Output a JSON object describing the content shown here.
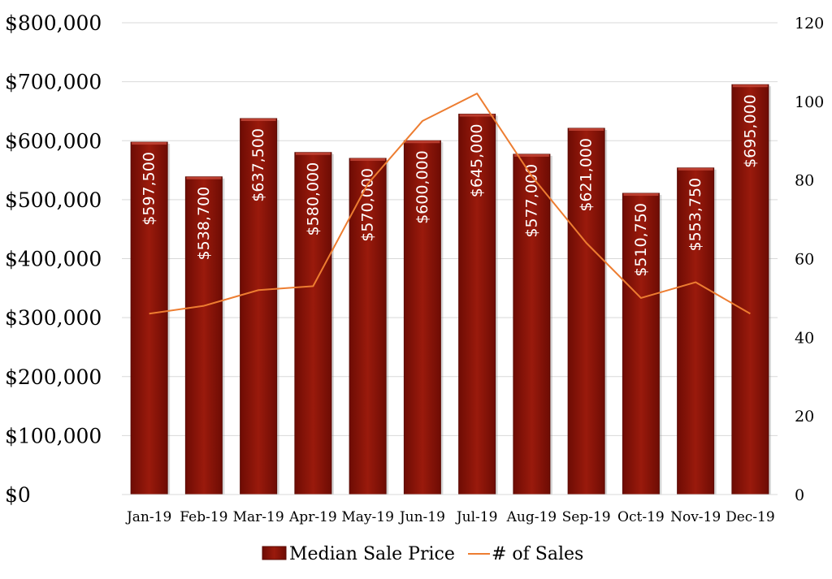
{
  "chart_data": {
    "type": "bar",
    "categories": [
      "Jan-19",
      "Feb-19",
      "Mar-19",
      "Apr-19",
      "May-19",
      "Jun-19",
      "Jul-19",
      "Aug-19",
      "Sep-19",
      "Oct-19",
      "Nov-19",
      "Dec-19"
    ],
    "series": [
      {
        "name": "Median Sale Price",
        "type": "bar",
        "axis": "left",
        "color": "#8b1208",
        "values": [
          597500,
          538700,
          637500,
          580000,
          570000,
          600000,
          645000,
          577000,
          621000,
          510750,
          553750,
          695000
        ],
        "data_labels": [
          "$597,500",
          "$538,700",
          "$637,500",
          "$580,000",
          "$570,000",
          "$600,000",
          "$645,000",
          "$577,000",
          "$621,000",
          "$510,750",
          "$553,750",
          "$695,000"
        ]
      },
      {
        "name": "# of Sales",
        "type": "line",
        "axis": "right",
        "color": "#ed7d31",
        "values": [
          46,
          48,
          52,
          53,
          79,
          95,
          102,
          81,
          64,
          50,
          54,
          46
        ]
      }
    ],
    "y_left": {
      "range": [
        0,
        800000
      ],
      "ticks": [
        0,
        100000,
        200000,
        300000,
        400000,
        500000,
        600000,
        700000,
        800000
      ],
      "tick_labels": [
        "$0",
        "$100,000",
        "$200,000",
        "$300,000",
        "$400,000",
        "$500,000",
        "$600,000",
        "$700,000",
        "$800,000"
      ]
    },
    "y_right": {
      "range": [
        0,
        120
      ],
      "ticks": [
        0,
        20,
        40,
        60,
        80,
        100,
        120
      ],
      "tick_labels": [
        "0",
        "20",
        "40",
        "60",
        "80",
        "100",
        "120"
      ]
    },
    "grid": true,
    "legend_position": "bottom"
  }
}
